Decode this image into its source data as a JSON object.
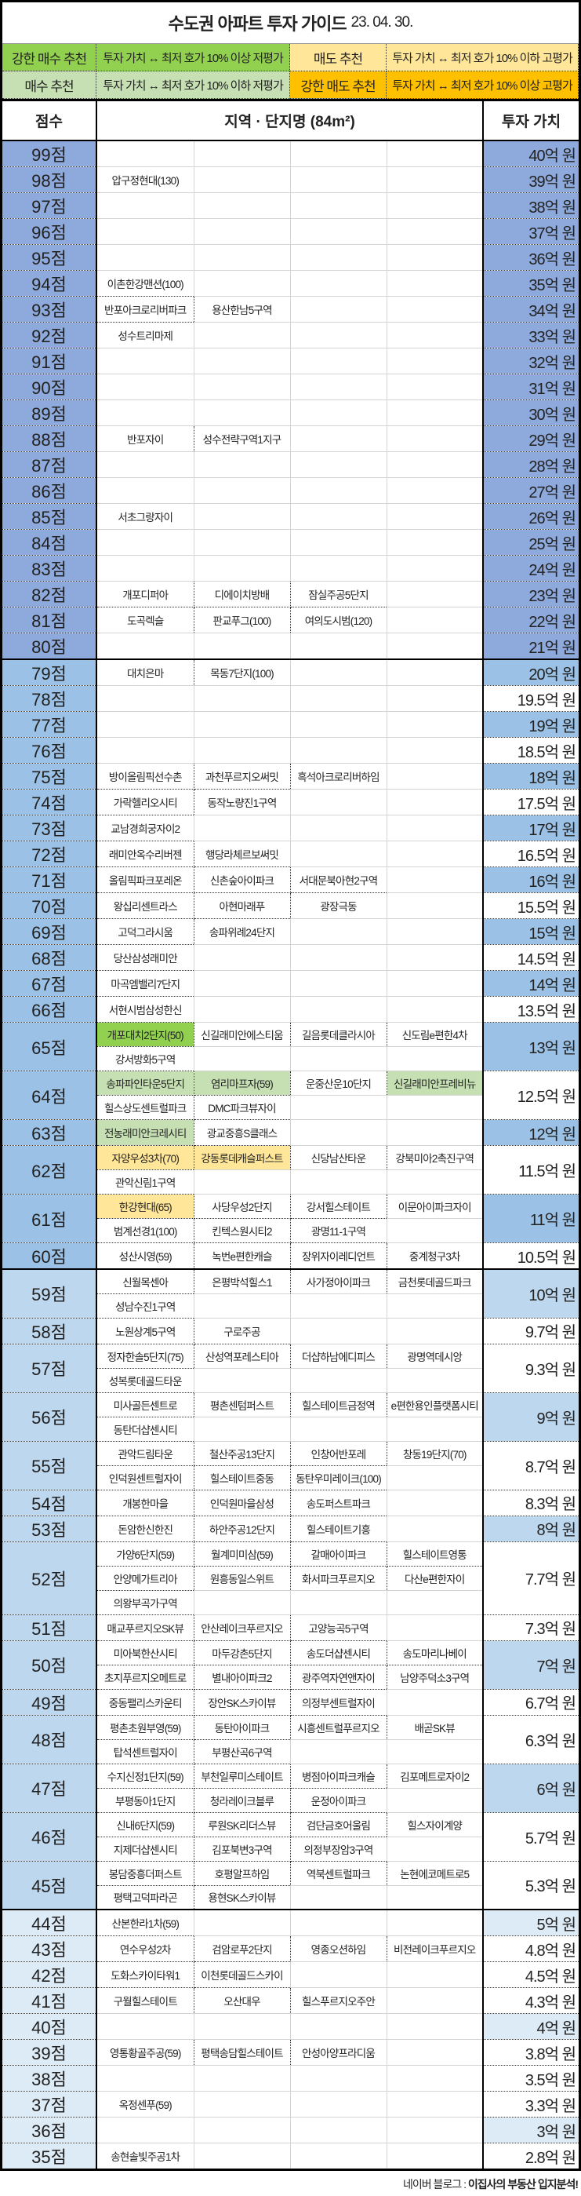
{
  "title": "수도권 아파트 투자 가이드",
  "date": "23. 04. 30.",
  "colors": {
    "tier1": "#8EA9DB",
    "tier2": "#9BC2E6",
    "tier3": "#BDD7EE",
    "tier4": "#DDEBF7",
    "strong_buy": "#92D050",
    "buy": "#C6E0B4",
    "sell": "#FFE699",
    "strong_sell": "#FFC000"
  },
  "legend": [
    {
      "label": "강한 매수 추천",
      "desc": "투자 가치 ↔ 최저 호가 10% 이상 저평가",
      "rec": "strong_buy"
    },
    {
      "label": "매도 추천",
      "desc": "투자 가치 ↔ 최저 호가 10% 이하 고평가",
      "rec": "sell"
    },
    {
      "label": "매수 추천",
      "desc": "투자 가치 ↔ 최저 호가 10% 이하 저평가",
      "rec": "buy"
    },
    {
      "label": "강한 매도 추천",
      "desc": "투자 가치 ↔ 최저 호가 10% 이상 고평가",
      "rec": "strong_sell"
    }
  ],
  "headers": {
    "score": "점수",
    "name": "지역 · 단지명 (84m²)",
    "value": "투자 가치"
  },
  "rows": [
    {
      "score": "99점",
      "value": "40억 원",
      "lines": [
        []
      ]
    },
    {
      "score": "98점",
      "value": "39억 원",
      "lines": [
        [
          "압구정현대(130)"
        ]
      ]
    },
    {
      "score": "97점",
      "value": "38억 원",
      "lines": [
        []
      ]
    },
    {
      "score": "96점",
      "value": "37억 원",
      "lines": [
        []
      ]
    },
    {
      "score": "95점",
      "value": "36억 원",
      "lines": [
        []
      ]
    },
    {
      "score": "94점",
      "value": "35억 원",
      "lines": [
        [
          "이촌한강맨션(100)"
        ]
      ]
    },
    {
      "score": "93점",
      "value": "34억 원",
      "lines": [
        [
          "반포아크로리버파크",
          "용산한남5구역"
        ]
      ]
    },
    {
      "score": "92점",
      "value": "33억 원",
      "lines": [
        [
          "성수트리마제"
        ]
      ]
    },
    {
      "score": "91점",
      "value": "32억 원",
      "lines": [
        []
      ]
    },
    {
      "score": "90점",
      "value": "31억 원",
      "lines": [
        []
      ]
    },
    {
      "score": "89점",
      "value": "30억 원",
      "lines": [
        []
      ]
    },
    {
      "score": "88점",
      "value": "29억 원",
      "lines": [
        [
          "반포자이",
          "성수전략구역1지구"
        ]
      ]
    },
    {
      "score": "87점",
      "value": "28억 원",
      "lines": [
        []
      ]
    },
    {
      "score": "86점",
      "value": "27억 원",
      "lines": [
        []
      ]
    },
    {
      "score": "85점",
      "value": "26억 원",
      "lines": [
        [
          "서초그랑자이"
        ]
      ]
    },
    {
      "score": "84점",
      "value": "25억 원",
      "lines": [
        []
      ]
    },
    {
      "score": "83점",
      "value": "24억 원",
      "lines": [
        []
      ]
    },
    {
      "score": "82점",
      "value": "23억 원",
      "lines": [
        [
          "개포디퍼아",
          "디에이치방배",
          "잠실주공5단지"
        ]
      ]
    },
    {
      "score": "81점",
      "value": "22억 원",
      "lines": [
        [
          "도곡렉슬",
          "판교푸그(100)",
          "여의도시범(120)"
        ]
      ]
    },
    {
      "score": "80점",
      "value": "21억 원",
      "lines": [
        []
      ]
    },
    {
      "score": "79점",
      "value": "20억 원",
      "lines": [
        [
          "대치은마",
          "목동7단지(100)"
        ]
      ]
    },
    {
      "score": "78점",
      "value": "19.5억 원",
      "lines": [
        []
      ]
    },
    {
      "score": "77점",
      "value": "19억 원",
      "lines": [
        []
      ]
    },
    {
      "score": "76점",
      "value": "18.5억 원",
      "lines": [
        []
      ]
    },
    {
      "score": "75점",
      "value": "18억 원",
      "lines": [
        [
          "방이올림픽선수촌",
          "과천푸르지오써밋",
          "흑석아크로리버하임"
        ]
      ]
    },
    {
      "score": "74점",
      "value": "17.5억 원",
      "lines": [
        [
          "가락헬리오시티",
          "동작노량진1구역"
        ]
      ]
    },
    {
      "score": "73점",
      "value": "17억 원",
      "lines": [
        [
          "교남경희궁자이2"
        ]
      ]
    },
    {
      "score": "72점",
      "value": "16.5억 원",
      "lines": [
        [
          "래미안옥수리버젠",
          "행당라체르보써밋"
        ]
      ]
    },
    {
      "score": "71점",
      "value": "16억 원",
      "lines": [
        [
          "올림픽파크포레온",
          "신촌숲아이파크",
          "서대문북아현2구역"
        ]
      ]
    },
    {
      "score": "70점",
      "value": "15.5억 원",
      "lines": [
        [
          "왕십리센트라스",
          "아현마래푸",
          "광장극동"
        ]
      ]
    },
    {
      "score": "69점",
      "value": "15억 원",
      "lines": [
        [
          "고덕그라시움",
          "송파위례24단지"
        ]
      ]
    },
    {
      "score": "68점",
      "value": "14.5억 원",
      "lines": [
        [
          "당산삼성래미안"
        ]
      ]
    },
    {
      "score": "67점",
      "value": "14억 원",
      "lines": [
        [
          "마곡엠밸리7단지"
        ]
      ]
    },
    {
      "score": "66점",
      "value": "13.5억 원",
      "lines": [
        [
          "서현시범삼성한신"
        ]
      ]
    },
    {
      "score": "65점",
      "value": "13억 원",
      "lines": [
        [
          {
            "name": "개포대치2단지(50)",
            "rec": "strong_buy"
          },
          "신길래미안에스티움",
          "길음롯데클라시아",
          "신도림e편한4차"
        ],
        [
          "강서방화5구역"
        ]
      ]
    },
    {
      "score": "64점",
      "value": "12.5억 원",
      "lines": [
        [
          {
            "name": "송파파인타운5단지",
            "rec": "buy"
          },
          {
            "name": "염리마프자(59)",
            "rec": "buy"
          },
          "운중산운10단지",
          {
            "name": "신길래미안프레비뉴",
            "rec": "buy"
          }
        ],
        [
          "힐스상도센트럴파크",
          "DMC파크뷰자이"
        ]
      ]
    },
    {
      "score": "63점",
      "value": "12억 원",
      "lines": [
        [
          {
            "name": "전농래미안크레시티",
            "rec": "buy"
          },
          "광교중흥S클래스"
        ]
      ]
    },
    {
      "score": "62점",
      "value": "11.5억 원",
      "lines": [
        [
          {
            "name": "자양우성3차(70)",
            "rec": "sell"
          },
          {
            "name": "강동롯데캐슬퍼스트",
            "rec": "sell"
          },
          "신당남산타운",
          "강북미아2촉진구역"
        ],
        [
          "관악신림1구역"
        ]
      ]
    },
    {
      "score": "61점",
      "value": "11억 원",
      "lines": [
        [
          {
            "name": "한강현대(65)",
            "rec": "sell"
          },
          "사당우성2단지",
          "강서힐스테이트",
          "이문아이파크자이"
        ],
        [
          "범계선경1(100)",
          "킨텍스원시티2",
          "광명11-1구역"
        ]
      ]
    },
    {
      "score": "60점",
      "value": "10.5억 원",
      "lines": [
        [
          "성산시영(59)",
          "녹번e편한캐슬",
          "장위자이레디언트",
          "중계청구3차"
        ]
      ]
    },
    {
      "score": "59점",
      "value": "10억 원",
      "lines": [
        [
          "신월목센아",
          "은평박석힐스1",
          "사가정아이파크",
          "금천롯데골드파크"
        ],
        [
          "성남수진1구역"
        ]
      ]
    },
    {
      "score": "58점",
      "value": "9.7억 원",
      "lines": [
        [
          "노원상계5구역",
          "구로주공"
        ]
      ]
    },
    {
      "score": "57점",
      "value": "9.3억 원",
      "lines": [
        [
          "정자한솔5단지(75)",
          "산성역포레스티아",
          "더샵하남에디피스",
          "광명역데시앙"
        ],
        [
          "성복롯데골드타운"
        ]
      ]
    },
    {
      "score": "56점",
      "value": "9억 원",
      "lines": [
        [
          "미사골든센트로",
          "평촌센텀퍼스트",
          "힐스테이트금정역",
          "e편한용인플랫폼시티"
        ],
        [
          "동탄더샵센시티"
        ]
      ]
    },
    {
      "score": "55점",
      "value": "8.7억 원",
      "lines": [
        [
          "관악드림타운",
          "철산주공13단지",
          "인창어반포레",
          "창동19단지(70)"
        ],
        [
          "인덕원센트럴자이",
          "힐스테이트중동",
          "동탄우미레이크(100)"
        ]
      ]
    },
    {
      "score": "54점",
      "value": "8.3억 원",
      "lines": [
        [
          "개봉한마을",
          "인덕원마을삼성",
          "송도퍼스트파크"
        ]
      ]
    },
    {
      "score": "53점",
      "value": "8억 원",
      "lines": [
        [
          "돈암한신한진",
          "하안주공12단지",
          "힐스테이트기흥"
        ]
      ]
    },
    {
      "score": "52점",
      "value": "7.7억 원",
      "lines": [
        [
          "가양6단지(59)",
          "월계미미삼(59)",
          "갈매아이파크",
          "힐스테이트영통"
        ],
        [
          "안양메가트리아",
          "원흥동일스위트",
          "화서파크푸르지오",
          "다산e편한자이"
        ],
        [
          "의왕부곡가구역"
        ]
      ]
    },
    {
      "score": "51점",
      "value": "7.3억 원",
      "lines": [
        [
          "매교푸르지오SK뷰",
          "안산레이크푸르지오",
          "고양능곡5구역"
        ]
      ]
    },
    {
      "score": "50점",
      "value": "7억 원",
      "lines": [
        [
          "미아북한산시티",
          "마두강촌5단지",
          "송도더샵센시티",
          "송도마리나베이"
        ],
        [
          "초지푸르지오메트로",
          "별내아이파크2",
          "광주역자연앤자이",
          "남양주덕소3구역"
        ]
      ]
    },
    {
      "score": "49점",
      "value": "6.7억 원",
      "lines": [
        [
          "중동팰리스카운티",
          "장안SK스카이뷰",
          "의정부센트럴자이"
        ]
      ]
    },
    {
      "score": "48점",
      "value": "6.3억 원",
      "lines": [
        [
          "평촌초원부영(59)",
          "동탄아이파크",
          "시흥센트럴푸르지오",
          "배곧SK뷰"
        ],
        [
          "탑석센트럴자이",
          "부평산곡6구역"
        ]
      ]
    },
    {
      "score": "47점",
      "value": "6억 원",
      "lines": [
        [
          "수지신정1단지(59)",
          "부천일루미스테이트",
          "병점아이파크캐슬",
          "김포메트로자이2"
        ],
        [
          "부평동아1단지",
          "청라레이크블루",
          "운정아이파크"
        ]
      ]
    },
    {
      "score": "46점",
      "value": "5.7억 원",
      "lines": [
        [
          "신내6단지(59)",
          "루원SK리더스뷰",
          "검단금호어울림",
          "힐스자이계양"
        ],
        [
          "지제더샵센시티",
          "김포북변3구역",
          "의정부장암3구역"
        ]
      ]
    },
    {
      "score": "45점",
      "value": "5.3억 원",
      "lines": [
        [
          "봉담중흥더퍼스트",
          "호평알프하임",
          "역북센트럴파크",
          "논현에코메트로5"
        ],
        [
          "평택고덕파라곤",
          "용현SK스카이뷰"
        ]
      ]
    },
    {
      "score": "44점",
      "value": "5억 원",
      "lines": [
        [
          "산본한라1차(59)"
        ]
      ]
    },
    {
      "score": "43점",
      "value": "4.8억 원",
      "lines": [
        [
          "연수우성2차",
          "검암로푸2단지",
          "영종오션하임",
          "비전레이크푸르지오"
        ]
      ]
    },
    {
      "score": "42점",
      "value": "4.5억 원",
      "lines": [
        [
          "도화스카이타워1",
          "이천롯데골드스카이"
        ]
      ]
    },
    {
      "score": "41점",
      "value": "4.3억 원",
      "lines": [
        [
          "구월힐스테이트",
          "오산대우",
          "힐스푸르지오주안"
        ]
      ]
    },
    {
      "score": "40점",
      "value": "4억 원",
      "lines": [
        []
      ]
    },
    {
      "score": "39점",
      "value": "3.8억 원",
      "lines": [
        [
          "영통황골주공(59)",
          "평택송담힐스테이트",
          "안성아양프라디움"
        ]
      ]
    },
    {
      "score": "38점",
      "value": "3.5억 원",
      "lines": [
        []
      ]
    },
    {
      "score": "37점",
      "value": "3.3억 원",
      "lines": [
        [
          "옥정센푸(59)"
        ]
      ]
    },
    {
      "score": "36점",
      "value": "3억 원",
      "lines": [
        []
      ]
    },
    {
      "score": "35점",
      "value": "2.8억 원",
      "lines": [
        [
          "송현솔빛주공1차"
        ]
      ]
    }
  ],
  "footer": {
    "prefix": "네이버 블로그 : ",
    "blog": "이집사의 부동산 입지분석!"
  }
}
